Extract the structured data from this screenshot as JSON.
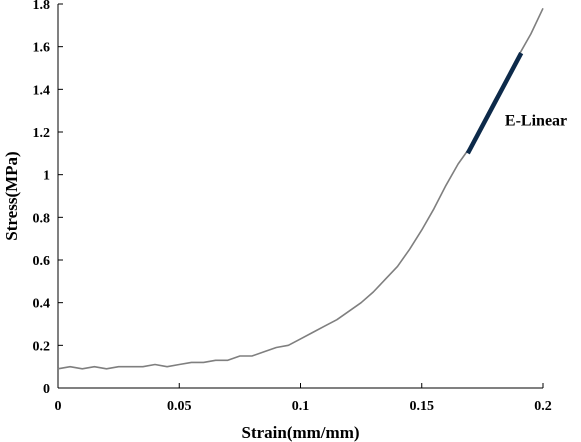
{
  "chart_data": {
    "type": "line",
    "title": "",
    "xlabel": "Strain(mm/mm)",
    "ylabel": "Stress(MPa)",
    "xlim": [
      0,
      0.2
    ],
    "ylim": [
      0,
      1.8
    ],
    "x_ticks": [
      0,
      0.05,
      0.1,
      0.15,
      0.2
    ],
    "x_tick_labels": [
      "0",
      "0.05",
      "0.1",
      "0.15",
      "0.2"
    ],
    "y_ticks": [
      0,
      0.2,
      0.4,
      0.6,
      0.8,
      1,
      1.2,
      1.4,
      1.6,
      1.8
    ],
    "y_tick_labels": [
      "0",
      "0.2",
      "0.4",
      "0.6",
      "0.8",
      "1",
      "1.2",
      "1.4",
      "1.6",
      "1.8"
    ],
    "grid": false,
    "series": [
      {
        "color": "#7f7f7f",
        "x": [
          0,
          0.005,
          0.01,
          0.015,
          0.02,
          0.025,
          0.03,
          0.035,
          0.04,
          0.045,
          0.05,
          0.055,
          0.06,
          0.065,
          0.07,
          0.075,
          0.08,
          0.085,
          0.09,
          0.095,
          0.1,
          0.105,
          0.11,
          0.115,
          0.12,
          0.125,
          0.13,
          0.135,
          0.14,
          0.145,
          0.15,
          0.155,
          0.16,
          0.165,
          0.17,
          0.175,
          0.18,
          0.185,
          0.19,
          0.195,
          0.2
        ],
        "y": [
          0.09,
          0.1,
          0.09,
          0.1,
          0.09,
          0.1,
          0.1,
          0.1,
          0.11,
          0.1,
          0.11,
          0.12,
          0.12,
          0.13,
          0.13,
          0.15,
          0.15,
          0.17,
          0.19,
          0.2,
          0.23,
          0.26,
          0.29,
          0.32,
          0.36,
          0.4,
          0.45,
          0.51,
          0.57,
          0.65,
          0.74,
          0.84,
          0.95,
          1.05,
          1.13,
          1.24,
          1.35,
          1.45,
          1.56,
          1.66,
          1.78
        ]
      },
      {
        "name": "E-Linear",
        "color": "#0d2a4a",
        "x": [
          0.169,
          0.191
        ],
        "y": [
          1.1,
          1.57
        ]
      }
    ],
    "annotations": [
      {
        "text": "E-Linear",
        "x": 0.181,
        "y": 1.23
      }
    ]
  }
}
